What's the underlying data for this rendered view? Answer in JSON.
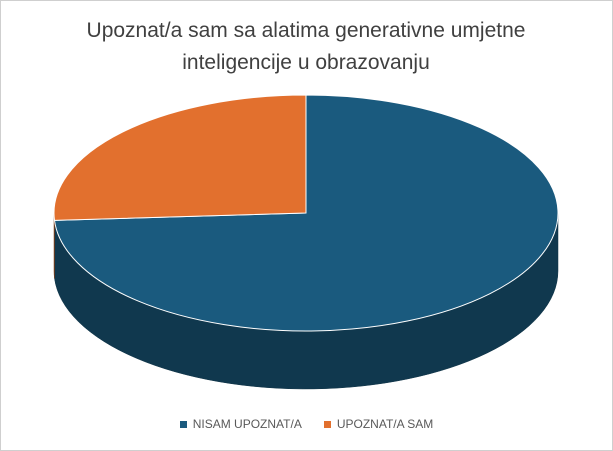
{
  "chart_data": {
    "type": "pie3d",
    "title": "Upoznat/a sam sa alatima generativne umjetne inteligencije u obrazovanju",
    "categories": [
      "NISAM UPOZNAT/A",
      "UPOZNAT/A SAM"
    ],
    "values": [
      74,
      26
    ],
    "colors": [
      "#1a5a7e",
      "#e2702e"
    ],
    "legend": "bottom"
  }
}
